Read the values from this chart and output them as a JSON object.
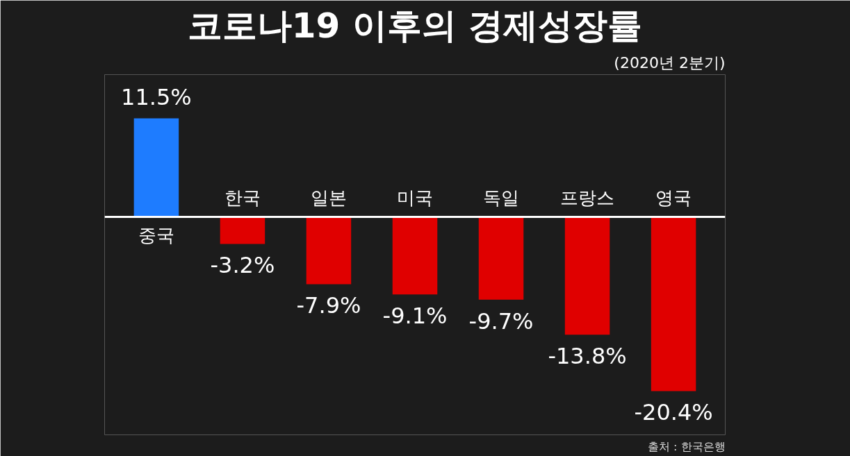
{
  "chart_data": {
    "type": "bar",
    "title": "코로나19 이후의 경제성장률",
    "subtitle": "(2020년 2분기)",
    "categories": [
      "중국",
      "한국",
      "일본",
      "미국",
      "독일",
      "프랑스",
      "영국"
    ],
    "values": [
      11.5,
      -3.2,
      -7.9,
      -9.1,
      -9.7,
      -13.8,
      -20.4
    ],
    "colors": [
      "#1e7cff",
      "#e00000",
      "#e00000",
      "#e00000",
      "#e00000",
      "#e00000",
      "#e00000"
    ],
    "value_labels": [
      "11.5%",
      "-3.2%",
      "-7.9%",
      "-9.1%",
      "-9.7%",
      "-13.8%",
      "-20.4%"
    ],
    "annotations": [
      "출처 : 한국은행"
    ],
    "grid": false
  }
}
